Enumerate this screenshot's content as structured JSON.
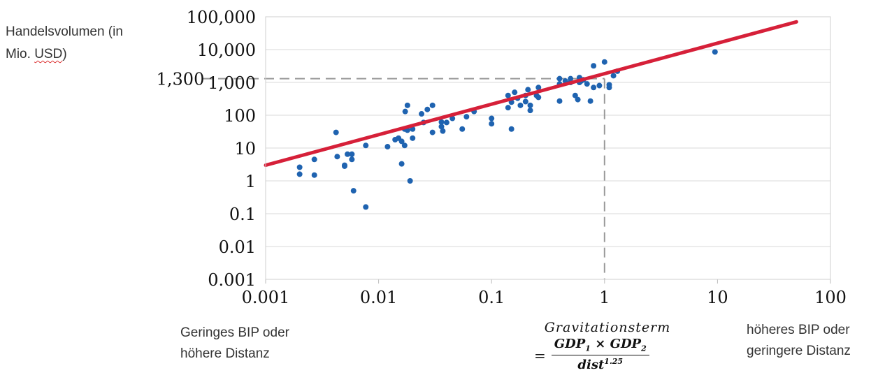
{
  "labels": {
    "ylabel_line1": "Handelsvolumen (in",
    "ylabel_line2_a": "Mio. ",
    "ylabel_line2_b": "USD",
    "ylabel_line2_c": ")",
    "left_note_line1": "Geringes BIP oder",
    "left_note_line2": "höhere Distanz",
    "right_note_line1": "höheres BIP oder",
    "right_note_line2": "geringere Distanz",
    "formula_title": "Gravitationsterm",
    "formula_eq": "=",
    "formula_num_a": "GDP",
    "formula_num_sub1": "1",
    "formula_num_times": " × ",
    "formula_num_b": "GDP",
    "formula_num_sub2": "2",
    "formula_den": "dist",
    "formula_den_sup": "1.25"
  },
  "chart_data": {
    "type": "scatter",
    "x_scale": "log",
    "y_scale": "log",
    "xlim": [
      0.001,
      100
    ],
    "ylim": [
      0.001,
      100000
    ],
    "x_ticks": [
      0.001,
      0.01,
      0.1,
      1,
      10,
      100
    ],
    "x_tick_labels": [
      "0.001",
      "0.01",
      "0.1",
      "1",
      "10",
      "100"
    ],
    "y_ticks": [
      0.001,
      0.01,
      0.1,
      1,
      10,
      100,
      1000,
      10000,
      100000
    ],
    "y_tick_labels": [
      "0.001",
      "0.01",
      "0.1",
      "1",
      "10",
      "100",
      "1,000",
      "10,000",
      "100,000"
    ],
    "grid": "horizontal",
    "point_color": "#1f63b0",
    "fit_line_color": "#d62039",
    "fit_line": {
      "x": [
        0.001,
        50
      ],
      "y": [
        3,
        70000
      ]
    },
    "reference": {
      "x": 1,
      "y": 1300,
      "y_label": "1,300",
      "color": "#999999"
    },
    "points": [
      [
        0.002,
        2.6
      ],
      [
        0.002,
        1.6
      ],
      [
        0.0027,
        4.5
      ],
      [
        0.0027,
        1.5
      ],
      [
        0.0042,
        30
      ],
      [
        0.0043,
        5.5
      ],
      [
        0.005,
        3
      ],
      [
        0.005,
        2.8
      ],
      [
        0.0053,
        6.5
      ],
      [
        0.0058,
        4.5
      ],
      [
        0.0058,
        6.5
      ],
      [
        0.006,
        0.5
      ],
      [
        0.0077,
        12
      ],
      [
        0.0077,
        0.16
      ],
      [
        0.012,
        11
      ],
      [
        0.014,
        18
      ],
      [
        0.015,
        20
      ],
      [
        0.016,
        3.3
      ],
      [
        0.016,
        16
      ],
      [
        0.017,
        38
      ],
      [
        0.017,
        12
      ],
      [
        0.0172,
        130
      ],
      [
        0.018,
        200
      ],
      [
        0.018,
        35
      ],
      [
        0.019,
        1
      ],
      [
        0.02,
        20
      ],
      [
        0.02,
        38
      ],
      [
        0.024,
        110
      ],
      [
        0.025,
        60
      ],
      [
        0.027,
        150
      ],
      [
        0.03,
        200
      ],
      [
        0.03,
        30
      ],
      [
        0.036,
        62
      ],
      [
        0.036,
        45
      ],
      [
        0.037,
        33
      ],
      [
        0.04,
        60
      ],
      [
        0.045,
        80
      ],
      [
        0.055,
        38
      ],
      [
        0.06,
        90
      ],
      [
        0.07,
        130
      ],
      [
        0.1,
        80
      ],
      [
        0.1,
        55
      ],
      [
        0.14,
        170
      ],
      [
        0.14,
        400
      ],
      [
        0.15,
        38
      ],
      [
        0.15,
        250
      ],
      [
        0.16,
        500
      ],
      [
        0.17,
        330
      ],
      [
        0.18,
        200
      ],
      [
        0.2,
        260
      ],
      [
        0.2,
        400
      ],
      [
        0.21,
        600
      ],
      [
        0.22,
        140
      ],
      [
        0.22,
        200
      ],
      [
        0.25,
        400
      ],
      [
        0.26,
        700
      ],
      [
        0.26,
        350
      ],
      [
        0.4,
        900
      ],
      [
        0.4,
        1300
      ],
      [
        0.4,
        270
      ],
      [
        0.45,
        1100
      ],
      [
        0.5,
        1000
      ],
      [
        0.5,
        1300
      ],
      [
        0.55,
        400
      ],
      [
        0.58,
        300
      ],
      [
        0.6,
        1000
      ],
      [
        0.6,
        1400
      ],
      [
        0.65,
        1200
      ],
      [
        0.7,
        900
      ],
      [
        0.8,
        700
      ],
      [
        0.8,
        3200
      ],
      [
        0.9,
        800
      ],
      [
        1.0,
        4200
      ],
      [
        1.1,
        700
      ],
      [
        1.1,
        850
      ],
      [
        1.2,
        1600
      ],
      [
        1.3,
        2200
      ],
      [
        9.5,
        8500
      ],
      [
        0.75,
        270
      ],
      [
        0.62,
        1100
      ]
    ]
  }
}
